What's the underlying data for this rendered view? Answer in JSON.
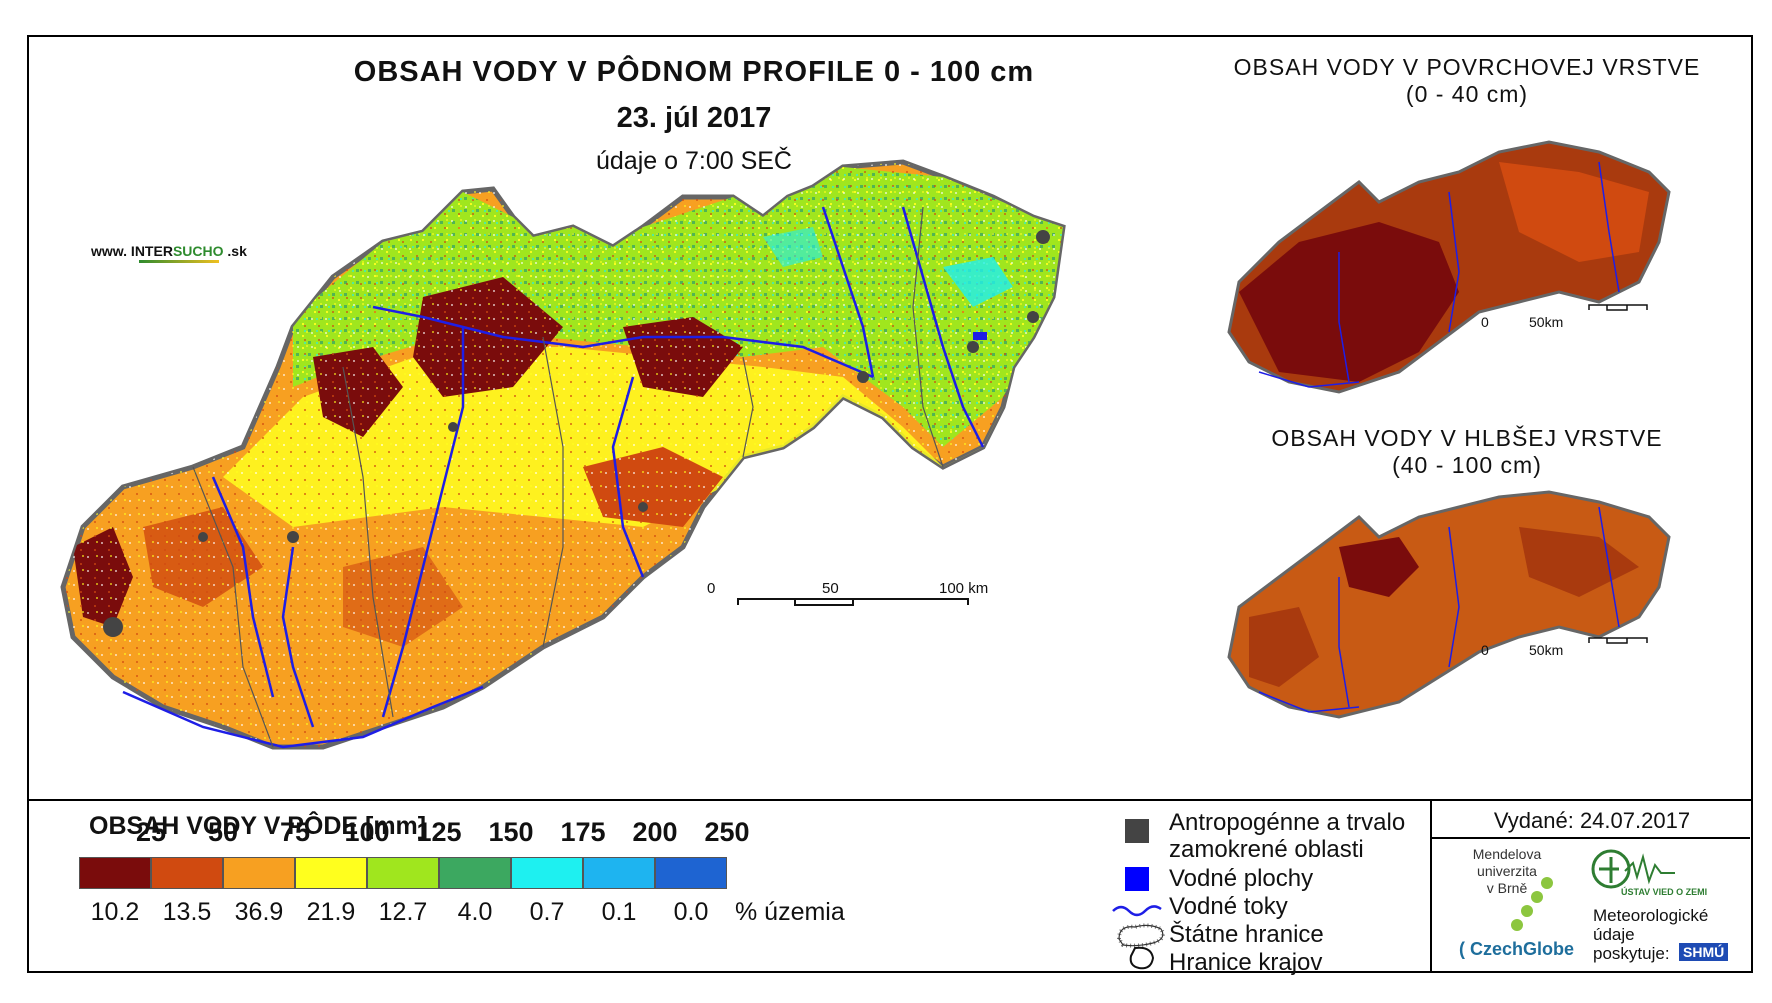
{
  "title": {
    "main": "OBSAH VODY V PÔDNOM PROFILE 0 - 100 cm",
    "date": "23. júl 2017",
    "time": "údaje o 7:00 SEČ"
  },
  "website": {
    "prefix": "www. INTER",
    "highlight": "SUCHO",
    "suffix": " .sk"
  },
  "inset_top": {
    "title_line1": "OBSAH VODY V POVRCHOVEJ VRSTVE",
    "title_line2": "(0 - 40 cm)"
  },
  "inset_bottom": {
    "title_line1": "OBSAH VODY V HLBŠEJ VRSTVE",
    "title_line2": "(40 - 100 cm)"
  },
  "scale_main": {
    "ticks": [
      "0",
      "50",
      "100 km"
    ]
  },
  "scale_inset": {
    "ticks": [
      "0",
      "50km"
    ]
  },
  "legend": {
    "title": "OBSAH VODY V PÔDE [mm]",
    "thresholds": [
      "25",
      "50",
      "75",
      "100",
      "125",
      "150",
      "175",
      "200",
      "250"
    ],
    "classes": [
      {
        "color": "#7a0c0c",
        "percent": "10.2"
      },
      {
        "color": "#d04a10",
        "percent": "13.5"
      },
      {
        "color": "#f7a021",
        "percent": "36.9"
      },
      {
        "color": "#ffff1e",
        "percent": "21.9"
      },
      {
        "color": "#a0e61e",
        "percent": "12.7"
      },
      {
        "color": "#3ca860",
        "percent": "4.0"
      },
      {
        "color": "#1ef0f0",
        "percent": "0.7"
      },
      {
        "color": "#1eb4f0",
        "percent": "0.1"
      },
      {
        "color": "#1e64d2",
        "percent": "0.0"
      }
    ],
    "percent_label": "% územia"
  },
  "map_legend": {
    "anthropogenic_line1": "Antropogénne a trvalo",
    "anthropogenic_line2": "zamokrené oblasti",
    "water_areas": "Vodné plochy",
    "water_flows": "Vodné toky",
    "state_border": "Štátne hranice",
    "region_border": "Hranice krajov"
  },
  "issued": "Vydané: 24.07.2017",
  "logos": {
    "mendelu_line1": "Mendelova",
    "mendelu_line2": "univerzita",
    "mendelu_line3": "v Brně",
    "czechglobe": "CzechGlobe",
    "ustav": "ÚSTAV VIED O ZEMI",
    "meteo_line1": "Meteorologické",
    "meteo_line2": "údaje",
    "meteo_line3": "poskytuje:",
    "shmu": "SHMÚ"
  }
}
